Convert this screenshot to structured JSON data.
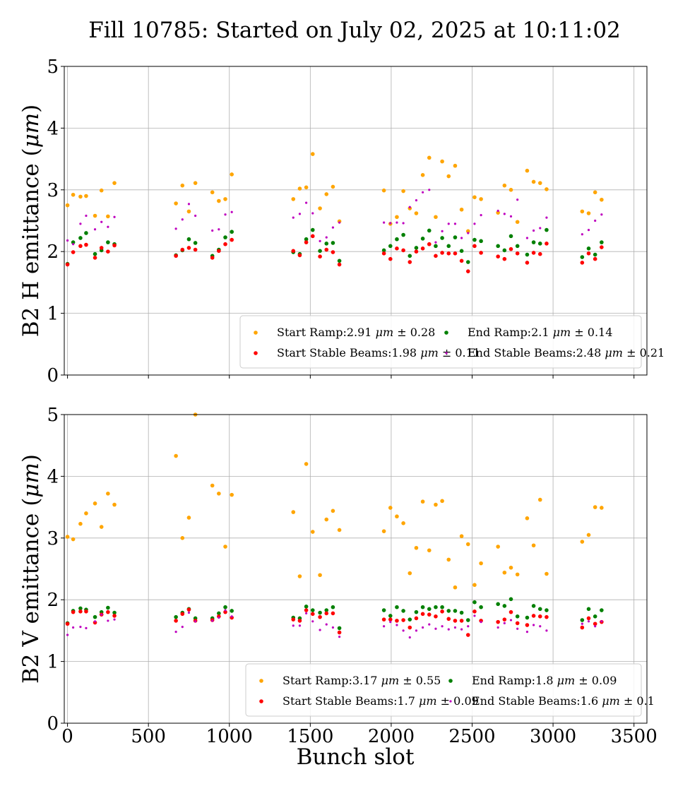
{
  "figure": {
    "title": "Fill 10785: Started on July 02, 2025 at 10:11:02",
    "xlabel": "Bunch slot"
  },
  "chart_data": [
    {
      "type": "scatter",
      "ylabel": "B2 H emittance (μm)",
      "xlim": [
        -20,
        3580
      ],
      "ylim": [
        0,
        5
      ],
      "xticks": [
        0,
        500,
        1000,
        1500,
        2000,
        2500,
        3000,
        3500
      ],
      "xticklabels_visible": false,
      "yticks": [
        0,
        1,
        2,
        3,
        4,
        5
      ],
      "grid": true,
      "legend_position": "lower-right",
      "series": [
        {
          "name": "Start Ramp",
          "value_text": "2.91 μm ± 0.28",
          "color": "#ffa500",
          "marker": "circle",
          "x": [
            0,
            35,
            80,
            115,
            170,
            210,
            250,
            290,
            670,
            710,
            750,
            790,
            895,
            935,
            975,
            1015,
            1395,
            1435,
            1475,
            1515,
            1560,
            1600,
            1640,
            1680,
            1955,
            1995,
            2035,
            2075,
            2115,
            2155,
            2195,
            2235,
            2275,
            2315,
            2355,
            2395,
            2435,
            2475,
            2515,
            2555,
            2660,
            2700,
            2740,
            2780,
            2840,
            2880,
            2920,
            2960,
            3180,
            3220,
            3260,
            3300
          ],
          "y": [
            2.75,
            2.92,
            2.89,
            2.9,
            2.58,
            2.99,
            2.57,
            3.11,
            2.78,
            3.07,
            2.65,
            3.11,
            2.96,
            2.82,
            2.85,
            3.25,
            2.85,
            3.02,
            3.04,
            3.58,
            2.7,
            2.93,
            3.05,
            2.49,
            2.99,
            2.45,
            2.56,
            2.98,
            2.7,
            2.62,
            3.24,
            3.52,
            2.56,
            3.46,
            3.22,
            3.39,
            2.68,
            2.33,
            2.88,
            2.85,
            2.63,
            3.07,
            3.0,
            2.48,
            3.31,
            3.13,
            3.11,
            3.01,
            2.65,
            2.62,
            2.96,
            2.84
          ]
        },
        {
          "name": "End Ramp",
          "value_text": "2.1 μm ± 0.14",
          "color": "#008000",
          "marker": "circle",
          "x": [
            0,
            35,
            80,
            115,
            170,
            210,
            250,
            290,
            670,
            710,
            750,
            790,
            895,
            935,
            975,
            1015,
            1395,
            1435,
            1475,
            1515,
            1560,
            1600,
            1640,
            1680,
            1955,
            1995,
            2035,
            2075,
            2115,
            2155,
            2195,
            2235,
            2275,
            2315,
            2355,
            2395,
            2435,
            2475,
            2515,
            2555,
            2660,
            2700,
            2740,
            2780,
            2840,
            2880,
            2920,
            2960,
            3180,
            3220,
            3260,
            3300
          ],
          "y": [
            1.8,
            2.15,
            2.22,
            2.3,
            1.96,
            2.02,
            2.15,
            2.12,
            1.94,
            2.02,
            2.2,
            2.14,
            1.93,
            2.03,
            2.23,
            2.32,
            1.99,
            1.96,
            2.2,
            2.35,
            2.01,
            2.13,
            2.14,
            1.85,
            2.02,
            2.09,
            2.2,
            2.27,
            1.93,
            2.06,
            2.21,
            2.34,
            2.09,
            2.22,
            2.09,
            2.23,
            2.01,
            1.83,
            2.19,
            2.17,
            2.09,
            2.02,
            2.25,
            2.09,
            1.95,
            2.15,
            2.13,
            2.35,
            1.91,
            2.05,
            1.95,
            2.15
          ]
        },
        {
          "name": "Start Stable Beams",
          "value_text": "1.98 μm ± 0.11",
          "color": "#ff0000",
          "marker": "circle",
          "x": [
            0,
            35,
            80,
            115,
            170,
            210,
            250,
            290,
            670,
            710,
            750,
            790,
            895,
            935,
            975,
            1015,
            1395,
            1435,
            1475,
            1515,
            1560,
            1600,
            1640,
            1680,
            1955,
            1995,
            2035,
            2075,
            2115,
            2155,
            2195,
            2235,
            2275,
            2315,
            2355,
            2395,
            2435,
            2475,
            2515,
            2555,
            2660,
            2700,
            2740,
            2780,
            2840,
            2880,
            2920,
            2960,
            3180,
            3220,
            3260,
            3300
          ],
          "y": [
            1.79,
            1.99,
            2.09,
            2.11,
            1.9,
            2.06,
            2.0,
            2.1,
            1.93,
            2.03,
            2.06,
            2.03,
            1.9,
            2.01,
            2.12,
            2.19,
            2.01,
            1.94,
            2.15,
            2.25,
            1.92,
            2.03,
            1.99,
            1.79,
            1.97,
            1.88,
            2.05,
            2.02,
            1.83,
            2.0,
            2.05,
            2.12,
            1.93,
            1.98,
            1.97,
            1.97,
            1.85,
            1.68,
            2.09,
            1.98,
            1.92,
            1.88,
            2.04,
            1.97,
            1.82,
            1.98,
            1.96,
            2.13,
            1.82,
            1.97,
            1.88,
            2.07
          ]
        },
        {
          "name": "End Stable Beams",
          "value_text": "2.48 μm ± 0.21",
          "color": "#bf00bf",
          "marker": "point",
          "x": [
            0,
            35,
            80,
            115,
            170,
            210,
            250,
            290,
            670,
            710,
            750,
            790,
            895,
            935,
            975,
            1015,
            1395,
            1435,
            1475,
            1515,
            1560,
            1600,
            1640,
            1680,
            1955,
            1995,
            2035,
            2075,
            2115,
            2155,
            2195,
            2235,
            2275,
            2315,
            2355,
            2395,
            2435,
            2475,
            2515,
            2555,
            2660,
            2700,
            2740,
            2780,
            2840,
            2880,
            2920,
            2960,
            3180,
            3220,
            3260,
            3300
          ],
          "y": [
            2.18,
            2.12,
            2.45,
            2.58,
            2.36,
            2.48,
            2.4,
            2.56,
            2.37,
            2.52,
            2.77,
            2.58,
            2.34,
            2.36,
            2.6,
            2.64,
            2.55,
            2.61,
            2.79,
            2.62,
            2.17,
            2.23,
            2.39,
            2.47,
            2.47,
            2.46,
            2.47,
            2.46,
            2.72,
            2.83,
            2.96,
            3.0,
            2.15,
            2.33,
            2.45,
            2.45,
            2.22,
            2.3,
            2.45,
            2.59,
            2.66,
            2.61,
            2.57,
            2.84,
            2.22,
            2.34,
            2.38,
            2.55,
            2.28,
            2.35,
            2.5,
            2.6
          ]
        }
      ]
    },
    {
      "type": "scatter",
      "ylabel": "B2 V emittance (μm)",
      "xlim": [
        -20,
        3580
      ],
      "ylim": [
        0,
        5
      ],
      "xticks": [
        0,
        500,
        1000,
        1500,
        2000,
        2500,
        3000,
        3500
      ],
      "xticklabels_visible": true,
      "yticks": [
        0,
        1,
        2,
        3,
        4,
        5
      ],
      "grid": true,
      "legend_position": "lower-right",
      "series": [
        {
          "name": "Start Ramp",
          "value_text": "3.17 μm ± 0.55",
          "color": "#ffa500",
          "marker": "circle",
          "x": [
            0,
            35,
            80,
            115,
            170,
            210,
            250,
            290,
            670,
            710,
            750,
            790,
            895,
            935,
            975,
            1015,
            1395,
            1435,
            1475,
            1515,
            1560,
            1600,
            1640,
            1680,
            1955,
            1995,
            2035,
            2075,
            2115,
            2155,
            2195,
            2235,
            2275,
            2315,
            2355,
            2395,
            2435,
            2475,
            2515,
            2555,
            2660,
            2700,
            2740,
            2780,
            2840,
            2880,
            2920,
            2960,
            3180,
            3220,
            3260,
            3300
          ],
          "y": [
            3.02,
            2.98,
            3.23,
            3.4,
            3.56,
            3.18,
            3.72,
            3.54,
            4.33,
            3.0,
            3.33,
            5.0,
            3.85,
            3.72,
            2.86,
            3.7,
            3.42,
            2.38,
            4.2,
            3.1,
            2.4,
            3.3,
            3.44,
            3.13,
            3.11,
            3.49,
            3.35,
            3.24,
            2.43,
            2.84,
            3.59,
            2.8,
            3.54,
            3.6,
            2.65,
            2.2,
            3.03,
            2.9,
            2.24,
            2.59,
            2.86,
            2.44,
            2.52,
            2.41,
            3.32,
            2.88,
            3.62,
            2.42,
            2.94,
            3.05,
            3.5,
            3.49
          ]
        },
        {
          "name": "End Ramp",
          "value_text": "1.8 μm ± 0.09",
          "color": "#008000",
          "marker": "circle",
          "x": [
            0,
            35,
            80,
            115,
            170,
            210,
            250,
            290,
            670,
            710,
            750,
            790,
            895,
            935,
            975,
            1015,
            1395,
            1435,
            1475,
            1515,
            1560,
            1600,
            1640,
            1680,
            1955,
            1995,
            2035,
            2075,
            2115,
            2155,
            2195,
            2235,
            2275,
            2315,
            2355,
            2395,
            2435,
            2475,
            2515,
            2555,
            2660,
            2700,
            2740,
            2780,
            2840,
            2880,
            2920,
            2960,
            3180,
            3220,
            3260,
            3300
          ],
          "y": [
            1.62,
            1.82,
            1.86,
            1.84,
            1.72,
            1.8,
            1.87,
            1.79,
            1.72,
            1.79,
            1.85,
            1.7,
            1.7,
            1.78,
            1.88,
            1.82,
            1.71,
            1.7,
            1.89,
            1.83,
            1.79,
            1.83,
            1.88,
            1.54,
            1.83,
            1.74,
            1.88,
            1.82,
            1.68,
            1.8,
            1.88,
            1.85,
            1.88,
            1.88,
            1.82,
            1.82,
            1.79,
            1.67,
            1.96,
            1.88,
            1.93,
            1.9,
            2.01,
            1.73,
            1.71,
            1.9,
            1.85,
            1.83,
            1.67,
            1.85,
            1.73,
            1.83
          ]
        },
        {
          "name": "Start Stable Beams",
          "value_text": "1.7 μm ± 0.09",
          "color": "#ff0000",
          "marker": "circle",
          "x": [
            0,
            35,
            80,
            115,
            170,
            210,
            250,
            290,
            670,
            710,
            750,
            790,
            895,
            935,
            975,
            1015,
            1395,
            1435,
            1475,
            1515,
            1560,
            1600,
            1640,
            1680,
            1955,
            1995,
            2035,
            2075,
            2115,
            2155,
            2195,
            2235,
            2275,
            2315,
            2355,
            2395,
            2435,
            2475,
            2515,
            2555,
            2660,
            2700,
            2740,
            2780,
            2840,
            2880,
            2920,
            2960,
            3180,
            3220,
            3260,
            3300
          ],
          "y": [
            1.61,
            1.8,
            1.81,
            1.81,
            1.63,
            1.76,
            1.8,
            1.74,
            1.66,
            1.77,
            1.84,
            1.66,
            1.67,
            1.73,
            1.8,
            1.71,
            1.68,
            1.66,
            1.83,
            1.77,
            1.72,
            1.78,
            1.78,
            1.47,
            1.68,
            1.68,
            1.66,
            1.67,
            1.55,
            1.7,
            1.77,
            1.76,
            1.73,
            1.81,
            1.69,
            1.66,
            1.66,
            1.43,
            1.81,
            1.66,
            1.64,
            1.68,
            1.8,
            1.62,
            1.59,
            1.74,
            1.73,
            1.72,
            1.55,
            1.7,
            1.61,
            1.64
          ]
        },
        {
          "name": "End Stable Beams",
          "value_text": "1.6 μm ± 0.1",
          "color": "#bf00bf",
          "marker": "point",
          "x": [
            0,
            35,
            80,
            115,
            170,
            210,
            250,
            290,
            670,
            710,
            750,
            790,
            895,
            935,
            975,
            1015,
            1395,
            1435,
            1475,
            1515,
            1560,
            1600,
            1640,
            1680,
            1955,
            1995,
            2035,
            2075,
            2115,
            2155,
            2195,
            2235,
            2275,
            2315,
            2355,
            2395,
            2435,
            2475,
            2515,
            2555,
            2660,
            2700,
            2740,
            2780,
            2840,
            2880,
            2920,
            2960,
            3180,
            3220,
            3260,
            3300
          ],
          "y": [
            1.43,
            1.55,
            1.56,
            1.54,
            1.65,
            1.76,
            1.66,
            1.68,
            1.48,
            1.56,
            1.79,
            1.65,
            1.66,
            1.71,
            1.83,
            1.73,
            1.58,
            1.58,
            1.78,
            1.65,
            1.51,
            1.6,
            1.55,
            1.4,
            1.57,
            1.64,
            1.59,
            1.5,
            1.39,
            1.5,
            1.55,
            1.6,
            1.53,
            1.57,
            1.52,
            1.55,
            1.52,
            1.57,
            1.74,
            1.64,
            1.55,
            1.62,
            1.67,
            1.53,
            1.48,
            1.59,
            1.57,
            1.5,
            1.61,
            1.65,
            1.57,
            1.65
          ]
        }
      ]
    }
  ]
}
